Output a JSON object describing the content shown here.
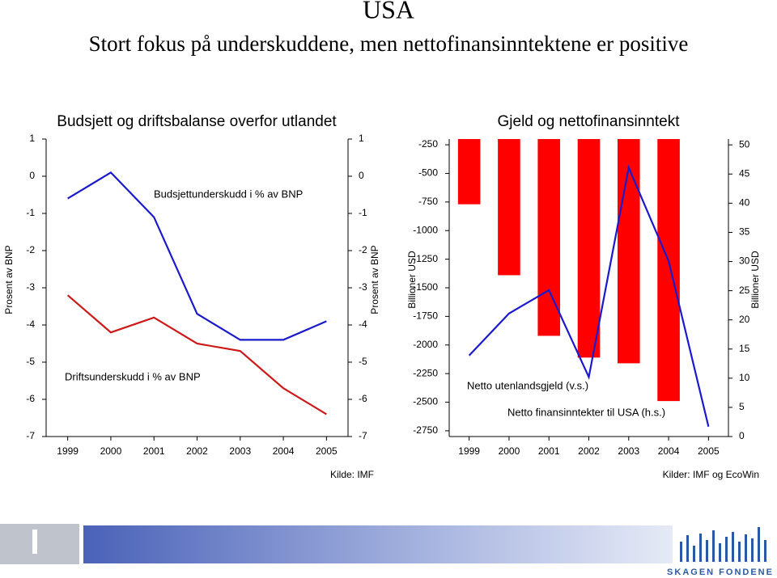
{
  "title": "USA",
  "subtitle": "Stort fokus på underskuddene, men nettofinansinntektene er positive",
  "footer_logo": "SKAGEN FONDENE",
  "chart_data": [
    {
      "type": "line",
      "title": "Budsjett og driftsbalanse overfor utlandet",
      "categories": [
        "1999",
        "2000",
        "2001",
        "2002",
        "2003",
        "2004",
        "2005"
      ],
      "series": [
        {
          "name": "Budsjettunderskudd i % av BNP",
          "color": "#1a1acc",
          "type": "line",
          "values": [
            -0.6,
            0.1,
            -1.1,
            -3.7,
            -4.4,
            -4.4,
            -3.9
          ]
        },
        {
          "name": "Driftsunderskudd i % av BNP",
          "color": "#cc1a1a",
          "type": "line",
          "values": [
            -3.2,
            -4.2,
            -3.8,
            -4.5,
            -4.7,
            -5.7,
            -6.4
          ]
        }
      ],
      "ylim": [
        -7,
        1
      ],
      "yticks": [
        -7,
        -6,
        -5,
        -4,
        -3,
        -2,
        -1,
        0,
        1
      ],
      "y2lim": [
        -7,
        1
      ],
      "y2ticks": [
        -7,
        -6,
        -5,
        -4,
        -3,
        -2,
        -1,
        0,
        1
      ],
      "ylabel": "Prosent av BNP",
      "y2label": "Prosent av BNP",
      "source": "Kilde: IMF"
    },
    {
      "type": "combo",
      "title": "Gjeld og nettofinansinntekt",
      "categories": [
        "1999",
        "2000",
        "2001",
        "2002",
        "2003",
        "2004",
        "2005"
      ],
      "series": [
        {
          "name": "Netto utenlandsgjeld (v.s.)",
          "color": "#ff0000",
          "type": "bar",
          "values": [
            -770,
            -1390,
            -1920,
            -2110,
            -2160,
            -2490,
            null
          ]
        },
        {
          "name": "Netto finansinntekter til USA (h.s.)",
          "color": "#1a1acc",
          "type": "line",
          "axis": "y2",
          "values": [
            13.9,
            21.1,
            25.1,
            10.2,
            46.1,
            30.1,
            1.7
          ]
        }
      ],
      "ylim": [
        -2800,
        -200
      ],
      "yticks": [
        -2750,
        -2500,
        -2250,
        -2000,
        -1750,
        -1500,
        -1250,
        -1000,
        -750,
        -500,
        -250
      ],
      "y2lim": [
        0,
        51
      ],
      "y2ticks": [
        0,
        5,
        10,
        15,
        20,
        25,
        30,
        35,
        40,
        45,
        50
      ],
      "ylabel": "Billioner USD",
      "y2label": "Billioner USD",
      "source": "Kilder: IMF og EcoWin"
    }
  ]
}
